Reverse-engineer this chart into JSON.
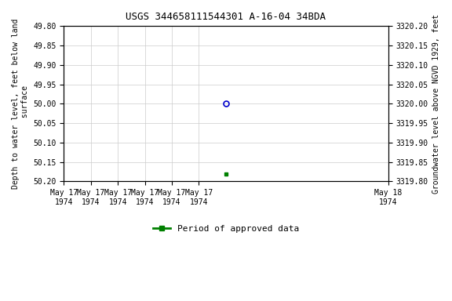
{
  "title": "USGS 344658111544301 A-16-04 34BDA",
  "ylabel_left": "Depth to water level, feet below land\n surface",
  "ylabel_right": "Groundwater level above NGVD 1929, feet",
  "ylim_left": [
    49.8,
    50.2
  ],
  "ylim_right": [
    3319.8,
    3320.2
  ],
  "y_ticks_left": [
    49.8,
    49.85,
    49.9,
    49.95,
    50.0,
    50.05,
    50.1,
    50.15,
    50.2
  ],
  "y_ticks_right": [
    3319.8,
    3319.85,
    3319.9,
    3319.95,
    3320.0,
    3320.05,
    3320.1,
    3320.15,
    3320.2
  ],
  "data_open_circle": {
    "date": "1974-05-17T12:00:00",
    "depth": 50.0
  },
  "data_filled_square": {
    "date": "1974-05-17T12:00:00",
    "depth": 50.18
  },
  "x_start": "1974-05-17T00:00:00",
  "x_end": "1974-05-18T00:00:00",
  "x_tick_dates": [
    "1974-05-17T00:00:00",
    "1974-05-17T02:00:00",
    "1974-05-17T04:00:00",
    "1974-05-17T06:00:00",
    "1974-05-17T08:00:00",
    "1974-05-17T10:00:00",
    "1974-05-18T00:00:00"
  ],
  "background_color": "#ffffff",
  "grid_color": "#cccccc",
  "open_circle_color": "#0000cc",
  "filled_square_color": "#008000",
  "legend_label": "Period of approved data",
  "font_family": "monospace"
}
